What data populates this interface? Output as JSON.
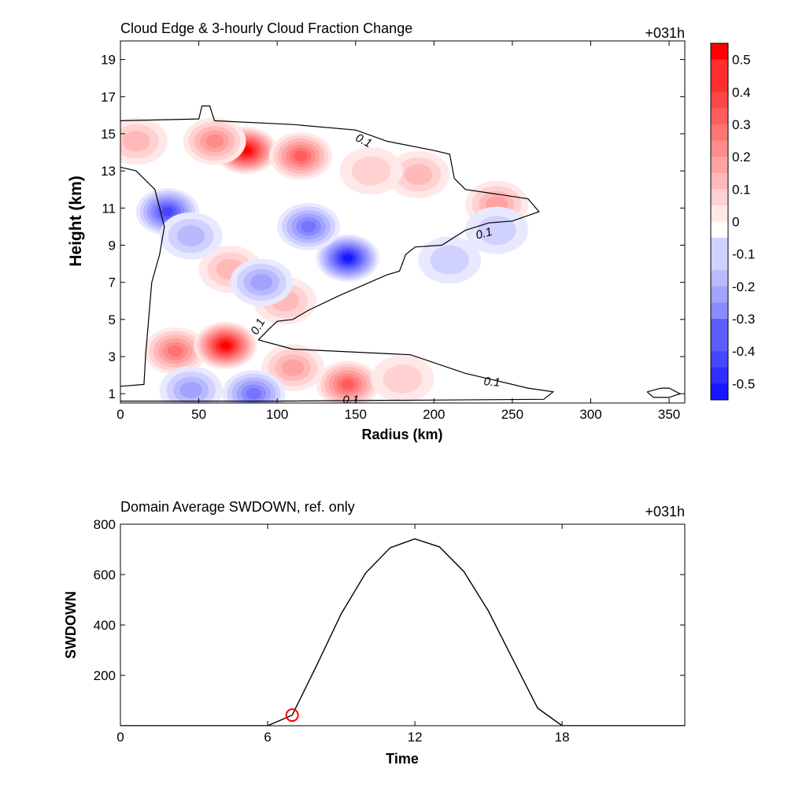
{
  "top_panel": {
    "title": "Cloud Edge & 3-hourly Cloud Fraction Change",
    "time_label": "+031h",
    "xlabel": "Radius (km)",
    "ylabel": "Height (km)",
    "x_ticks": [
      "0",
      "50",
      "100",
      "150",
      "200",
      "250",
      "300",
      "350"
    ],
    "y_ticks": [
      "1",
      "3",
      "5",
      "7",
      "9",
      "11",
      "13",
      "15",
      "17",
      "19"
    ],
    "contour_level": "0.1"
  },
  "colorbar": {
    "labels": [
      "0.5",
      "0.4",
      "0.3",
      "0.2",
      "0.1",
      "0",
      "-0.1",
      "-0.2",
      "-0.3",
      "-0.4",
      "-0.5"
    ],
    "positive_color": "#ff0000",
    "negative_color": "#0000ff",
    "neutral_color": "#ffffff"
  },
  "bottom_panel": {
    "title": "Domain Average SWDOWN, ref. only",
    "time_label": "+031h",
    "xlabel": "Time",
    "ylabel": "SWDOWN",
    "x_ticks": [
      "0",
      "6",
      "12",
      "18"
    ],
    "y_ticks": [
      "200",
      "400",
      "600",
      "800"
    ],
    "line_color": "#000000",
    "marker_color": "#ff0000"
  },
  "chart_data": [
    {
      "type": "heatmap",
      "title": "Cloud Edge & 3-hourly Cloud Fraction Change",
      "xlabel": "Radius (km)",
      "ylabel": "Height (km)",
      "xlim": [
        0,
        360
      ],
      "ylim": [
        0.5,
        20
      ],
      "colorbar_range": [
        -0.55,
        0.55
      ],
      "colorbar_step": 0.05,
      "contour_value": 0.1,
      "features": [
        {
          "x": 80,
          "y": 14.1,
          "value": 0.55
        },
        {
          "x": 60,
          "y": 14.6,
          "value": 0.25
        },
        {
          "x": 115,
          "y": 13.8,
          "value": 0.35
        },
        {
          "x": 10,
          "y": 14.6,
          "value": 0.15
        },
        {
          "x": 240,
          "y": 11.2,
          "value": 0.2
        },
        {
          "x": 190,
          "y": 12.8,
          "value": 0.15
        },
        {
          "x": 35,
          "y": 3.3,
          "value": 0.3
        },
        {
          "x": 67,
          "y": 3.6,
          "value": 0.55
        },
        {
          "x": 110,
          "y": 2.4,
          "value": 0.2
        },
        {
          "x": 145,
          "y": 1.5,
          "value": 0.35
        },
        {
          "x": 180,
          "y": 1.8,
          "value": 0.12
        },
        {
          "x": 105,
          "y": 6.0,
          "value": 0.15
        },
        {
          "x": 70,
          "y": 7.7,
          "value": 0.15
        },
        {
          "x": 160,
          "y": 13.0,
          "value": 0.12
        },
        {
          "x": 30,
          "y": 10.8,
          "value": -0.38
        },
        {
          "x": 45,
          "y": 9.5,
          "value": -0.15
        },
        {
          "x": 145,
          "y": 8.3,
          "value": -0.5
        },
        {
          "x": 120,
          "y": 10.0,
          "value": -0.3
        },
        {
          "x": 90,
          "y": 7.0,
          "value": -0.18
        },
        {
          "x": 210,
          "y": 8.2,
          "value": -0.08
        },
        {
          "x": 240,
          "y": 9.8,
          "value": -0.08
        },
        {
          "x": 85,
          "y": 1.0,
          "value": -0.28
        },
        {
          "x": 45,
          "y": 1.2,
          "value": -0.2
        }
      ],
      "contour_0_1": [
        [
          [
            0,
            15.7
          ],
          [
            50,
            15.8
          ],
          [
            52,
            16.5
          ],
          [
            57,
            16.5
          ],
          [
            60,
            15.7
          ],
          [
            110,
            15.5
          ],
          [
            150,
            15.2
          ],
          [
            170,
            14.6
          ],
          [
            200,
            14.1
          ],
          [
            210,
            13.9
          ],
          [
            213,
            12.6
          ],
          [
            220,
            12.0
          ],
          [
            260,
            11.5
          ],
          [
            267,
            10.8
          ],
          [
            250,
            10.3
          ],
          [
            235,
            10.2
          ],
          [
            220,
            9.8
          ],
          [
            205,
            9.0
          ],
          [
            188,
            8.9
          ],
          [
            182,
            8.5
          ],
          [
            178,
            7.6
          ],
          [
            170,
            7.4
          ],
          [
            140,
            6.3
          ],
          [
            120,
            5.5
          ],
          [
            110,
            5.0
          ],
          [
            100,
            4.9
          ],
          [
            95,
            4.5
          ],
          [
            88,
            3.9
          ],
          [
            110,
            3.4
          ],
          [
            185,
            3.1
          ],
          [
            220,
            2.1
          ],
          [
            260,
            1.3
          ],
          [
            276,
            1.1
          ],
          [
            270,
            0.7
          ],
          [
            100,
            0.6
          ],
          [
            60,
            0.6
          ],
          [
            20,
            0.6
          ],
          [
            0,
            0.6
          ]
        ],
        [
          [
            0,
            13.2
          ],
          [
            10,
            13.0
          ],
          [
            22,
            12.0
          ],
          [
            28,
            10.0
          ],
          [
            25,
            8.5
          ],
          [
            20,
            7.0
          ],
          [
            18,
            5.0
          ],
          [
            16,
            3.0
          ],
          [
            15,
            1.5
          ],
          [
            0,
            1.4
          ]
        ],
        [
          [
            336,
            1.1
          ],
          [
            345,
            1.3
          ],
          [
            350,
            1.3
          ],
          [
            357,
            1.0
          ],
          [
            350,
            0.8
          ],
          [
            340,
            0.8
          ],
          [
            336,
            1.1
          ]
        ]
      ],
      "contour_labels": [
        {
          "x": 155,
          "y": 14.6,
          "text": "0.1",
          "angle": 28
        },
        {
          "x": 232,
          "y": 9.6,
          "text": "0.1",
          "angle": -15
        },
        {
          "x": 88,
          "y": 4.6,
          "text": "0.1",
          "angle": -60
        },
        {
          "x": 237,
          "y": 1.6,
          "text": "0.1",
          "angle": 5
        },
        {
          "x": 147,
          "y": 0.65,
          "text": "0.1",
          "angle": 0
        }
      ]
    },
    {
      "type": "line",
      "title": "Domain Average SWDOWN, ref. only",
      "xlabel": "Time",
      "ylabel": "SWDOWN",
      "xlim": [
        0,
        23
      ],
      "ylim": [
        0,
        800
      ],
      "series": [
        {
          "x": [
            0,
            1,
            2,
            3,
            4,
            5,
            6,
            7,
            8,
            9,
            10,
            11,
            12,
            13,
            14,
            15,
            16,
            17,
            18,
            19,
            20,
            21,
            22,
            23
          ],
          "values": [
            0,
            0,
            0,
            0,
            0,
            0,
            0,
            42,
            240,
            445,
            607,
            707,
            742,
            710,
            612,
            455,
            262,
            70,
            0,
            0,
            0,
            0,
            0,
            0
          ]
        }
      ],
      "marker": {
        "x": 7,
        "y": 42
      }
    }
  ]
}
